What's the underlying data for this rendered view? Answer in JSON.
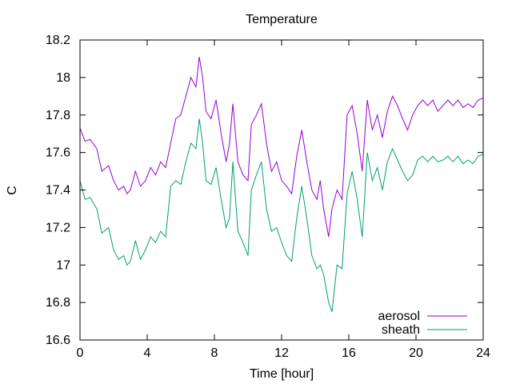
{
  "chart_data": {
    "type": "line",
    "title": "Temperature",
    "xlabel": "Time [hour]",
    "ylabel": "C",
    "xlim": [
      0,
      24
    ],
    "ylim": [
      16.6,
      18.2
    ],
    "x_ticks": [
      0,
      4,
      8,
      12,
      16,
      20,
      24
    ],
    "y_ticks": [
      16.6,
      16.8,
      17.0,
      17.2,
      17.4,
      17.6,
      17.8,
      18.0,
      18.2
    ],
    "x_tick_labels": [
      "0",
      "4",
      "8",
      "12",
      "16",
      "20",
      "24"
    ],
    "y_tick_labels": [
      "16.6",
      "16.8",
      "17",
      "17.2",
      "17.4",
      "17.6",
      "17.8",
      "18",
      "18.2"
    ],
    "grid": false,
    "legend_position": "bottom-right",
    "series": [
      {
        "name": "aerosol",
        "color": "#9400d3",
        "x": [
          0,
          0.3,
          0.6,
          1.0,
          1.3,
          1.7,
          2.0,
          2.3,
          2.6,
          2.8,
          3.0,
          3.3,
          3.6,
          3.9,
          4.2,
          4.5,
          4.8,
          5.1,
          5.4,
          5.7,
          6.0,
          6.3,
          6.6,
          6.9,
          7.1,
          7.3,
          7.5,
          7.8,
          8.1,
          8.4,
          8.7,
          8.9,
          9.1,
          9.4,
          9.7,
          10.0,
          10.2,
          10.5,
          10.8,
          11.1,
          11.4,
          11.7,
          12.0,
          12.3,
          12.6,
          12.9,
          13.2,
          13.5,
          13.8,
          14.1,
          14.3,
          14.5,
          14.8,
          15.0,
          15.3,
          15.6,
          15.9,
          16.2,
          16.5,
          16.8,
          17.1,
          17.4,
          17.7,
          18.0,
          18.3,
          18.6,
          18.9,
          19.2,
          19.5,
          19.8,
          20.1,
          20.4,
          20.7,
          21.0,
          21.3,
          21.6,
          21.9,
          22.2,
          22.5,
          22.8,
          23.1,
          23.4,
          23.7,
          24.0
        ],
        "values": [
          17.73,
          17.66,
          17.67,
          17.62,
          17.5,
          17.53,
          17.45,
          17.4,
          17.42,
          17.38,
          17.4,
          17.5,
          17.42,
          17.45,
          17.52,
          17.48,
          17.55,
          17.52,
          17.65,
          17.78,
          17.8,
          17.9,
          18.0,
          17.95,
          18.11,
          18.0,
          17.82,
          17.78,
          17.88,
          17.7,
          17.55,
          17.65,
          17.86,
          17.55,
          17.48,
          17.45,
          17.75,
          17.8,
          17.86,
          17.65,
          17.5,
          17.55,
          17.45,
          17.42,
          17.38,
          17.58,
          17.72,
          17.55,
          17.4,
          17.35,
          17.45,
          17.3,
          17.15,
          17.3,
          17.4,
          17.35,
          17.8,
          17.85,
          17.7,
          17.5,
          17.88,
          17.72,
          17.8,
          17.68,
          17.82,
          17.9,
          17.85,
          17.78,
          17.72,
          17.8,
          17.85,
          17.88,
          17.85,
          17.88,
          17.82,
          17.85,
          17.88,
          17.85,
          17.88,
          17.84,
          17.86,
          17.84,
          17.88,
          17.89
        ]
      },
      {
        "name": "sheath",
        "color": "#009e73",
        "x": [
          0,
          0.3,
          0.6,
          1.0,
          1.3,
          1.7,
          2.0,
          2.3,
          2.6,
          2.8,
          3.0,
          3.3,
          3.6,
          3.9,
          4.2,
          4.5,
          4.8,
          5.1,
          5.4,
          5.7,
          6.0,
          6.3,
          6.6,
          6.9,
          7.1,
          7.3,
          7.5,
          7.8,
          8.1,
          8.4,
          8.7,
          8.9,
          9.1,
          9.4,
          9.7,
          10.0,
          10.2,
          10.5,
          10.8,
          11.1,
          11.4,
          11.7,
          12.0,
          12.3,
          12.6,
          12.9,
          13.2,
          13.5,
          13.8,
          14.1,
          14.3,
          14.5,
          14.8,
          15.0,
          15.3,
          15.6,
          15.9,
          16.2,
          16.5,
          16.8,
          17.1,
          17.4,
          17.7,
          18.0,
          18.3,
          18.6,
          18.9,
          19.2,
          19.5,
          19.8,
          20.1,
          20.4,
          20.7,
          21.0,
          21.3,
          21.6,
          21.9,
          22.2,
          22.5,
          22.8,
          23.1,
          23.4,
          23.7,
          24.0
        ],
        "values": [
          17.45,
          17.35,
          17.36,
          17.3,
          17.17,
          17.2,
          17.08,
          17.03,
          17.05,
          17.0,
          17.02,
          17.13,
          17.03,
          17.08,
          17.15,
          17.12,
          17.18,
          17.15,
          17.42,
          17.45,
          17.43,
          17.55,
          17.65,
          17.62,
          17.78,
          17.65,
          17.45,
          17.43,
          17.52,
          17.35,
          17.2,
          17.25,
          17.55,
          17.18,
          17.12,
          17.05,
          17.4,
          17.48,
          17.55,
          17.3,
          17.18,
          17.2,
          17.12,
          17.05,
          17.02,
          17.25,
          17.42,
          17.25,
          17.05,
          16.98,
          17.0,
          16.95,
          16.8,
          16.75,
          17.0,
          16.98,
          17.38,
          17.5,
          17.35,
          17.15,
          17.6,
          17.45,
          17.52,
          17.4,
          17.55,
          17.62,
          17.56,
          17.5,
          17.45,
          17.48,
          17.56,
          17.58,
          17.55,
          17.58,
          17.55,
          17.56,
          17.58,
          17.55,
          17.58,
          17.54,
          17.56,
          17.54,
          17.58,
          17.59
        ]
      }
    ]
  }
}
